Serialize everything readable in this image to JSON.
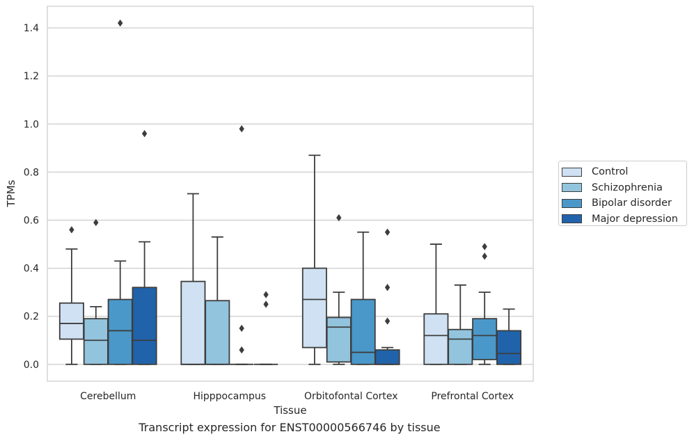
{
  "chart_data": {
    "type": "box",
    "xlabel": "Tissue",
    "ylabel": "TPMs",
    "caption": "Transcript expression for ENST00000566746 by tissue",
    "ylim": [
      -0.07,
      1.49
    ],
    "yticks": [
      "0.0",
      "0.2",
      "0.4",
      "0.6",
      "0.8",
      "1.0",
      "1.2",
      "1.4"
    ],
    "grid": true,
    "legend_position": "right",
    "categories": [
      "Cerebellum",
      "Hipppocampus",
      "Orbitofontal Cortex",
      "Prefrontal Cortex"
    ],
    "series": [
      {
        "name": "Control",
        "color": "#cfe1f2",
        "boxes": [
          {
            "whisker_low": 0.0,
            "q1": 0.105,
            "median": 0.17,
            "q3": 0.255,
            "whisker_high": 0.48,
            "outliers": [
              0.56
            ]
          },
          {
            "whisker_low": 0.0,
            "q1": 0.0,
            "median": 0.0,
            "q3": 0.345,
            "whisker_high": 0.71,
            "outliers": []
          },
          {
            "whisker_low": 0.0,
            "q1": 0.07,
            "median": 0.27,
            "q3": 0.4,
            "whisker_high": 0.87,
            "outliers": []
          },
          {
            "whisker_low": 0.0,
            "q1": 0.0,
            "median": 0.12,
            "q3": 0.21,
            "whisker_high": 0.5,
            "outliers": []
          }
        ]
      },
      {
        "name": "Schizophrenia",
        "color": "#93c4de",
        "boxes": [
          {
            "whisker_low": 0.0,
            "q1": 0.0,
            "median": 0.1,
            "q3": 0.19,
            "whisker_high": 0.24,
            "outliers": [
              0.59
            ]
          },
          {
            "whisker_low": 0.0,
            "q1": 0.0,
            "median": 0.0,
            "q3": 0.265,
            "whisker_high": 0.53,
            "outliers": []
          },
          {
            "whisker_low": 0.0,
            "q1": 0.01,
            "median": 0.155,
            "q3": 0.195,
            "whisker_high": 0.3,
            "outliers": [
              0.61
            ]
          },
          {
            "whisker_low": 0.0,
            "q1": 0.0,
            "median": 0.105,
            "q3": 0.145,
            "whisker_high": 0.33,
            "outliers": []
          }
        ]
      },
      {
        "name": "Bipolar disorder",
        "color": "#4a98c9",
        "boxes": [
          {
            "whisker_low": 0.0,
            "q1": 0.0,
            "median": 0.14,
            "q3": 0.27,
            "whisker_high": 0.43,
            "outliers": [
              1.42
            ]
          },
          {
            "whisker_low": 0.0,
            "q1": 0.0,
            "median": 0.0,
            "q3": 0.0,
            "whisker_high": 0.0,
            "outliers": [
              0.98,
              0.15,
              0.06
            ]
          },
          {
            "whisker_low": 0.0,
            "q1": 0.0,
            "median": 0.05,
            "q3": 0.27,
            "whisker_high": 0.55,
            "outliers": []
          },
          {
            "whisker_low": 0.0,
            "q1": 0.02,
            "median": 0.12,
            "q3": 0.19,
            "whisker_high": 0.3,
            "outliers": [
              0.49,
              0.45
            ]
          }
        ]
      },
      {
        "name": "Major depression",
        "color": "#2163aa",
        "boxes": [
          {
            "whisker_low": 0.0,
            "q1": 0.0,
            "median": 0.1,
            "q3": 0.32,
            "whisker_high": 0.51,
            "outliers": [
              0.96
            ]
          },
          {
            "whisker_low": 0.0,
            "q1": 0.0,
            "median": 0.0,
            "q3": 0.0,
            "whisker_high": 0.0,
            "outliers": [
              0.29,
              0.25
            ]
          },
          {
            "whisker_low": 0.0,
            "q1": 0.0,
            "median": 0.0,
            "q3": 0.06,
            "whisker_high": 0.07,
            "outliers": [
              0.55,
              0.32,
              0.18
            ]
          },
          {
            "whisker_low": 0.0,
            "q1": 0.0,
            "median": 0.045,
            "q3": 0.14,
            "whisker_high": 0.23,
            "outliers": []
          }
        ]
      }
    ]
  }
}
